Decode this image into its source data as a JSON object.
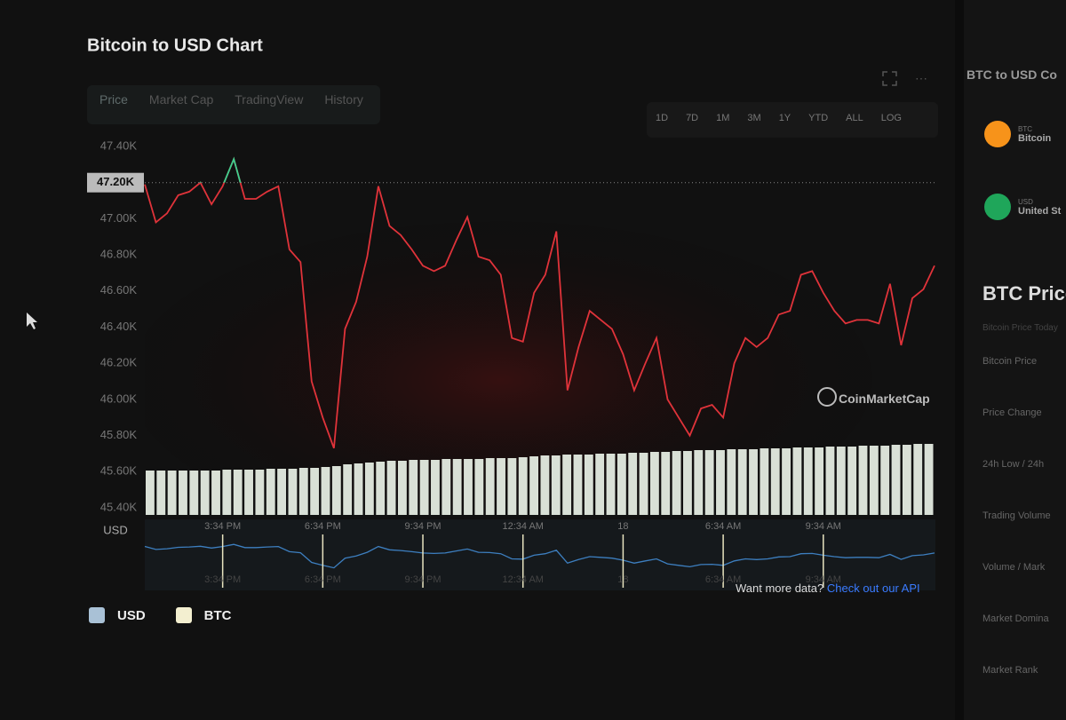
{
  "header": {
    "title": "Bitcoin to USD Chart"
  },
  "tabs": [
    "Price",
    "Market Cap",
    "TradingView",
    "History"
  ],
  "ranges": [
    "1D",
    "7D",
    "1M",
    "3M",
    "1Y",
    "YTD",
    "ALL",
    "LOG"
  ],
  "watermark": "CoinMarketCap",
  "footer": {
    "text": "Want more data?",
    "link": "Check out our API"
  },
  "legend": [
    {
      "name": "USD",
      "color": "#a9c1d6"
    },
    {
      "name": "BTC",
      "color": "#f3efd0"
    }
  ],
  "chart_data": {
    "type": "line",
    "axis_label": "USD",
    "categories": [
      null,
      null,
      null,
      null,
      null,
      null,
      null,
      "3:34 PM",
      null,
      null,
      null,
      null,
      null,
      null,
      null,
      null,
      "6:34 PM",
      null,
      null,
      null,
      null,
      null,
      null,
      null,
      null,
      "9:34 PM",
      null,
      null,
      null,
      null,
      null,
      null,
      null,
      null,
      "12:34 AM",
      null,
      null,
      null,
      null,
      null,
      null,
      null,
      null,
      "18",
      null,
      null,
      null,
      null,
      null,
      null,
      null,
      null,
      "6:34 AM",
      null,
      null,
      null,
      null,
      null,
      null,
      null,
      null,
      "9:34 AM",
      null,
      null,
      null,
      null,
      null,
      null,
      null,
      null,
      null,
      null
    ],
    "series": [
      {
        "name": "USD",
        "color": "#e0333a",
        "above_color": "#3ecf8e",
        "values": [
          47190,
          46980,
          47030,
          47130,
          47150,
          47200,
          47080,
          47180,
          47330,
          47110,
          47110,
          47150,
          47180,
          46830,
          46760,
          46100,
          45900,
          45730,
          46390,
          46540,
          46790,
          47180,
          46960,
          46910,
          46830,
          46740,
          46710,
          46740,
          46880,
          47010,
          46790,
          46770,
          46690,
          46340,
          46320,
          46590,
          46690,
          46930,
          46050,
          46290,
          46490,
          46440,
          46390,
          46250,
          46050,
          46200,
          46340,
          46000,
          45900,
          45800,
          45950,
          45970,
          45900,
          46200,
          46340,
          46290,
          46340,
          46470,
          46490,
          46690,
          46710,
          46590,
          46490,
          46420,
          46440,
          46440,
          46420,
          46640,
          46300,
          46560,
          46610,
          46740
        ]
      }
    ],
    "volume": [
      50,
      50,
      50,
      50,
      50,
      50,
      50,
      51,
      51,
      51,
      51,
      52,
      52,
      52,
      53,
      53,
      54,
      55,
      57,
      58,
      59,
      60,
      61,
      61,
      62,
      62,
      62,
      63,
      63,
      63,
      63,
      64,
      64,
      64,
      65,
      66,
      67,
      67,
      68,
      68,
      68,
      69,
      69,
      69,
      70,
      70,
      71,
      71,
      72,
      72,
      73,
      73,
      73,
      74,
      74,
      74,
      75,
      75,
      75,
      76,
      76,
      76,
      77,
      77,
      77,
      78,
      78,
      78,
      79,
      79,
      80,
      80
    ],
    "reference": {
      "value": 47200,
      "label": "47.20K"
    },
    "ylim": [
      45400,
      47400
    ],
    "yticks": [
      {
        "value": 45400,
        "label": "45.40K"
      },
      {
        "value": 45600,
        "label": "45.60K"
      },
      {
        "value": 45800,
        "label": "45.80K"
      },
      {
        "value": 46000,
        "label": "46.00K"
      },
      {
        "value": 46200,
        "label": "46.20K"
      },
      {
        "value": 46400,
        "label": "46.40K"
      },
      {
        "value": 46600,
        "label": "46.60K"
      },
      {
        "value": 46800,
        "label": "46.80K"
      },
      {
        "value": 47000,
        "label": "47.00K"
      },
      {
        "value": 47200,
        "label": "47.20K"
      },
      {
        "value": 47400,
        "label": "47.40K"
      }
    ]
  },
  "sidebar": {
    "title": "BTC to USD Co",
    "assets": [
      {
        "symbol": "BTC",
        "name": "Bitcoin",
        "color": "#f7931a"
      },
      {
        "symbol": "USD",
        "name": "United St",
        "color": "#1fa65a"
      }
    ],
    "stats_title": "BTC Price",
    "stats_sub": "Bitcoin Price Today",
    "stats": [
      "Bitcoin Price",
      "Price Change",
      "24h Low / 24h",
      "Trading Volume",
      "Volume / Mark",
      "Market Domina",
      "Market Rank"
    ]
  }
}
